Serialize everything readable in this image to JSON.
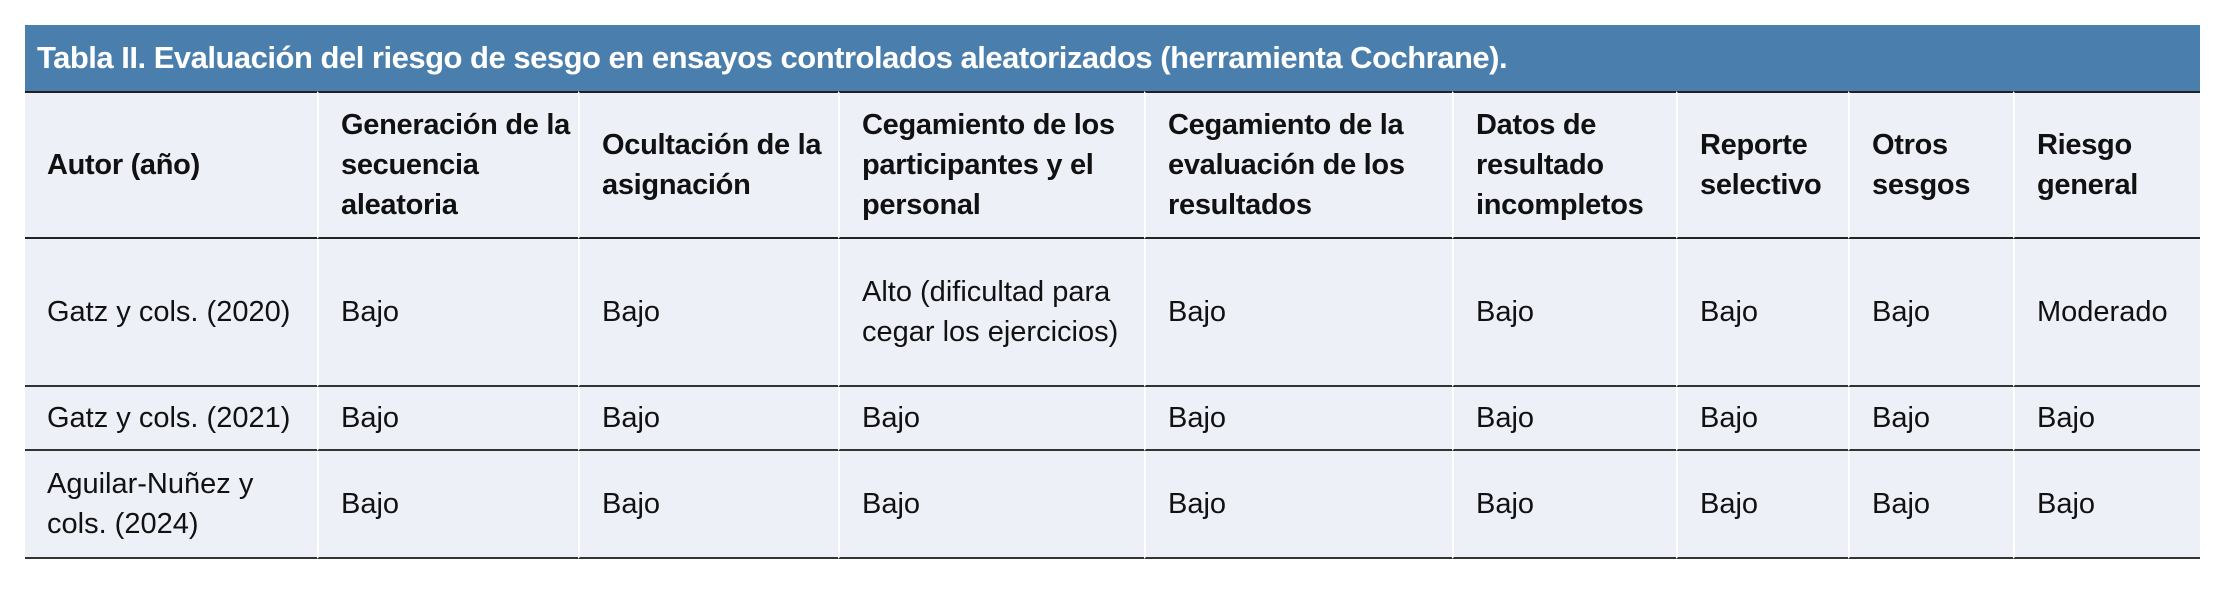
{
  "title": "Tabla II. Evaluación del riesgo de sesgo en ensayos controlados aleatorizados (herramienta Cochrane).",
  "headers": [
    "Autor (año)",
    "Generación de la secuencia aleatoria",
    "Ocultación de la asignación",
    "Cegamiento de los participantes y el personal",
    "Cegamiento de la evaluación de los resultados",
    "Datos de resultado incompletos",
    "Reporte selectivo",
    "Otros sesgos",
    "Riesgo general"
  ],
  "rows": [
    [
      "Gatz y cols. (2020)",
      "Bajo",
      "Bajo",
      "Alto (dificultad para cegar los ejercicios)",
      "Bajo",
      "Bajo",
      "Bajo",
      "Bajo",
      "Moderado"
    ],
    [
      "Gatz y cols. (2021)",
      "Bajo",
      "Bajo",
      "Bajo",
      "Bajo",
      "Bajo",
      "Bajo",
      "Bajo",
      "Bajo"
    ],
    [
      "Aguilar-Nuñez y cols. (2024)",
      "Bajo",
      "Bajo",
      "Bajo",
      "Bajo",
      "Bajo",
      "Bajo",
      "Bajo",
      "Bajo"
    ]
  ],
  "colors": {
    "title_bar": "#4a7eac",
    "table_bg": "#edf0f7"
  }
}
